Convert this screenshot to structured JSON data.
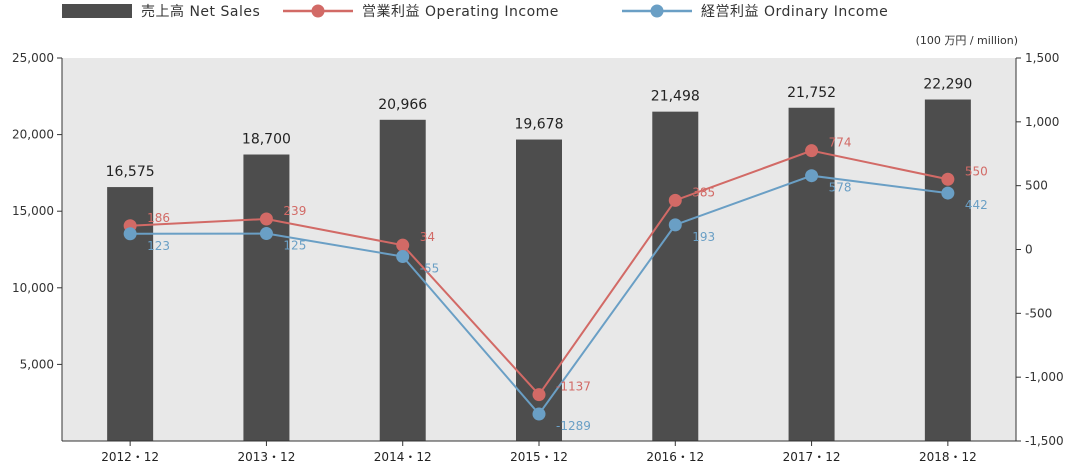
{
  "chart_data": {
    "type": "bar",
    "categories": [
      "2012・12",
      "2013・12",
      "2014・12",
      "2015・12",
      "2016・12",
      "2017・12",
      "2018・12"
    ],
    "series": [
      {
        "name": "売上高 Net Sales",
        "kind": "bar",
        "axis": "left",
        "values": [
          16575,
          18700,
          20966,
          19678,
          21498,
          21752,
          22290
        ]
      },
      {
        "name": "営業利益 Operating Income",
        "kind": "line",
        "axis": "right",
        "values": [
          186,
          239,
          34,
          -1137,
          385,
          774,
          550
        ]
      },
      {
        "name": "経営利益 Ordinary Income",
        "kind": "line",
        "axis": "right",
        "values": [
          123,
          125,
          -55,
          -1289,
          193,
          578,
          442
        ]
      }
    ],
    "bar_labels": [
      "16,575",
      "18,700",
      "20,966",
      "19,678",
      "21,498",
      "21,752",
      "22,290"
    ],
    "left_axis": {
      "ylim": [
        0,
        25000
      ],
      "ticks": [
        "5,000",
        "10,000",
        "15,000",
        "20,000",
        "25,000"
      ],
      "tick_values": [
        5000,
        10000,
        15000,
        20000,
        25000
      ]
    },
    "right_axis": {
      "ylim": [
        -1500,
        1500
      ],
      "ticks": [
        "-1,500",
        "-1,000",
        "-500",
        "0",
        "500",
        "1,000",
        "1,500"
      ],
      "tick_values": [
        -1500,
        -1000,
        -500,
        0,
        500,
        1000,
        1500
      ]
    },
    "unit_label": "(100 万円 / million)",
    "legend_position": "top-left",
    "colors": {
      "bar": "#4d4d4d",
      "operating": "#d26a66",
      "ordinary": "#6a9fc5",
      "plot_bg": "#e8e8e8"
    }
  }
}
